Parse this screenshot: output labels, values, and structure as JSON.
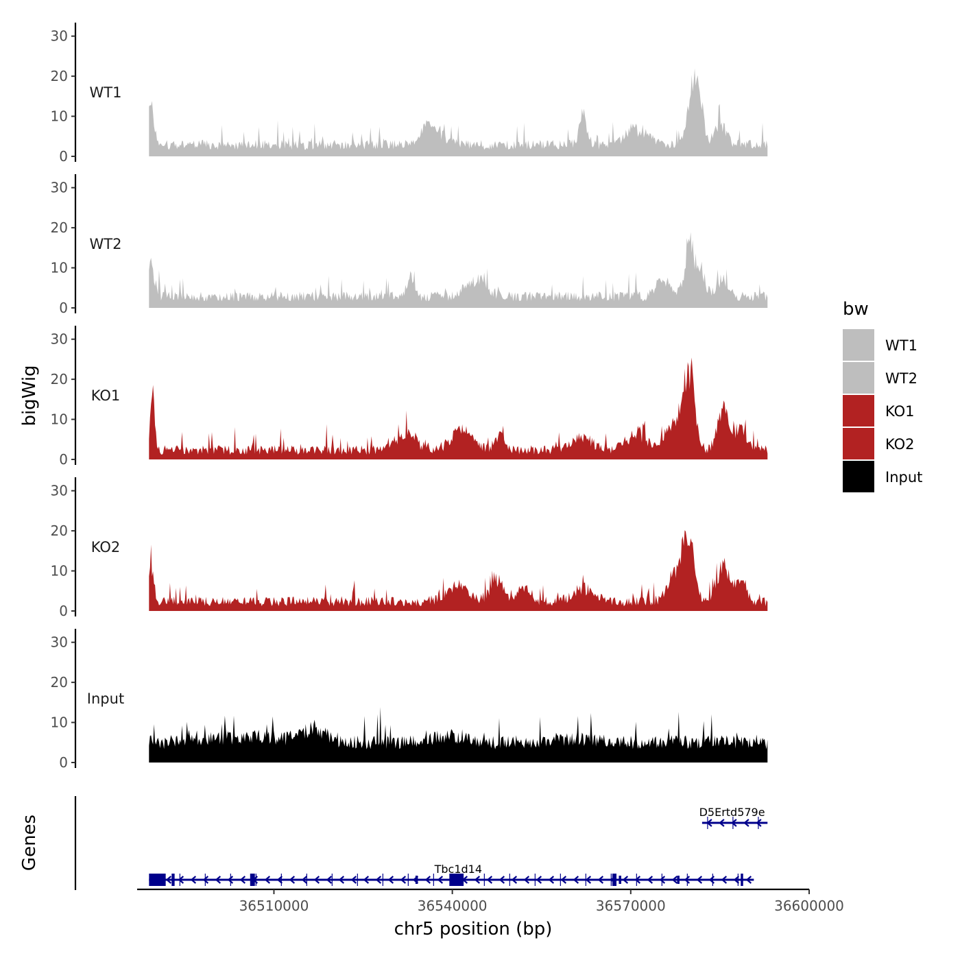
{
  "chart_data": {
    "type": "area",
    "y_axis_title": "bigWig",
    "genes_axis_title": "Genes",
    "x_axis_title": "chr5 position (bp)",
    "x_range": [
      36487000,
      36600000
    ],
    "data_range": [
      36489000,
      36593000
    ],
    "y_range": [
      0,
      32
    ],
    "y_ticks": [
      0,
      10,
      20,
      30
    ],
    "x_ticks": [
      36510000,
      36540000,
      36570000,
      36600000
    ],
    "legend": {
      "title": "bw",
      "position": "right",
      "entries": [
        {
          "label": "WT1",
          "color": "#BEBEBE"
        },
        {
          "label": "WT2",
          "color": "#BEBEBE"
        },
        {
          "label": "KO1",
          "color": "#B22222"
        },
        {
          "label": "KO2",
          "color": "#B22222"
        },
        {
          "label": "Input",
          "color": "#000000"
        }
      ]
    },
    "tracks": [
      {
        "name": "WT1",
        "color": "#BEBEBE",
        "base": 2.5,
        "noise": 2.5,
        "seed": 11,
        "peaks": [
          {
            "pos": 36489200,
            "height": 12,
            "width": 700
          },
          {
            "pos": 36536500,
            "height": 5,
            "width": 2500
          },
          {
            "pos": 36562000,
            "height": 7,
            "width": 900
          },
          {
            "pos": 36571000,
            "height": 4,
            "width": 3000
          },
          {
            "pos": 36580500,
            "height": 14,
            "width": 1400
          },
          {
            "pos": 36581200,
            "height": 6,
            "width": 900
          },
          {
            "pos": 36585000,
            "height": 5,
            "width": 1500
          }
        ]
      },
      {
        "name": "WT2",
        "color": "#BEBEBE",
        "base": 2.5,
        "noise": 2.5,
        "seed": 23,
        "peaks": [
          {
            "pos": 36489300,
            "height": 8,
            "width": 800
          },
          {
            "pos": 36533000,
            "height": 5,
            "width": 800
          },
          {
            "pos": 36544000,
            "height": 4,
            "width": 2500
          },
          {
            "pos": 36575500,
            "height": 5,
            "width": 1500
          },
          {
            "pos": 36580000,
            "height": 13,
            "width": 1200
          },
          {
            "pos": 36582000,
            "height": 5,
            "width": 900
          },
          {
            "pos": 36585500,
            "height": 4,
            "width": 1500
          }
        ]
      },
      {
        "name": "KO1",
        "color": "#B22222",
        "base": 2.0,
        "noise": 2.4,
        "seed": 37,
        "peaks": [
          {
            "pos": 36489600,
            "height": 17,
            "width": 500
          },
          {
            "pos": 36532000,
            "height": 4,
            "width": 2500
          },
          {
            "pos": 36541500,
            "height": 5,
            "width": 2500
          },
          {
            "pos": 36548000,
            "height": 4,
            "width": 1200
          },
          {
            "pos": 36562000,
            "height": 3,
            "width": 2500
          },
          {
            "pos": 36571000,
            "height": 4,
            "width": 2500
          },
          {
            "pos": 36576500,
            "height": 5,
            "width": 1500
          },
          {
            "pos": 36579500,
            "height": 19,
            "width": 1500
          },
          {
            "pos": 36580500,
            "height": 6,
            "width": 500
          },
          {
            "pos": 36585500,
            "height": 10,
            "width": 1300
          },
          {
            "pos": 36588500,
            "height": 5,
            "width": 1500
          }
        ]
      },
      {
        "name": "KO2",
        "color": "#B22222",
        "base": 2.0,
        "noise": 2.4,
        "seed": 53,
        "peaks": [
          {
            "pos": 36489300,
            "height": 11,
            "width": 600
          },
          {
            "pos": 36541000,
            "height": 4,
            "width": 2500
          },
          {
            "pos": 36547500,
            "height": 6,
            "width": 1500
          },
          {
            "pos": 36552000,
            "height": 4,
            "width": 1500
          },
          {
            "pos": 36562000,
            "height": 3,
            "width": 2500
          },
          {
            "pos": 36577000,
            "height": 6,
            "width": 1400
          },
          {
            "pos": 36579500,
            "height": 17,
            "width": 1500
          },
          {
            "pos": 36585500,
            "height": 9,
            "width": 1500
          },
          {
            "pos": 36588500,
            "height": 5,
            "width": 1200
          }
        ]
      },
      {
        "name": "Input",
        "color": "#000000",
        "base": 4.5,
        "noise": 3.6,
        "seed": 71,
        "peaks": [
          {
            "pos": 36506000,
            "height": 1.5,
            "width": 8000
          },
          {
            "pos": 36517000,
            "height": 3,
            "width": 3000
          },
          {
            "pos": 36540000,
            "height": 1.5,
            "width": 4000
          },
          {
            "pos": 36560000,
            "height": 1,
            "width": 5000
          }
        ]
      }
    ],
    "genes": [
      {
        "name": "Tbc1d14",
        "strand": "-",
        "start": 36489000,
        "end": 36590700,
        "row": 1,
        "exons": [
          {
            "start": 36489000,
            "end": 36491800,
            "kind": "thick"
          },
          {
            "start": 36492800,
            "end": 36493300,
            "kind": "thick"
          },
          {
            "start": 36506000,
            "end": 36506800,
            "kind": "thick"
          },
          {
            "start": 36533800,
            "end": 36534200,
            "kind": "thin"
          },
          {
            "start": 36539500,
            "end": 36541900,
            "kind": "thick"
          },
          {
            "start": 36566900,
            "end": 36567600,
            "kind": "thick"
          },
          {
            "start": 36568000,
            "end": 36568400,
            "kind": "thin"
          },
          {
            "start": 36577800,
            "end": 36578200,
            "kind": "thin"
          },
          {
            "start": 36588500,
            "end": 36588900,
            "kind": "thick"
          }
        ]
      },
      {
        "name": "D5Ertd579e",
        "strand": "-",
        "start": 36582000,
        "end": 36593000,
        "row": 0,
        "exons": []
      }
    ]
  }
}
